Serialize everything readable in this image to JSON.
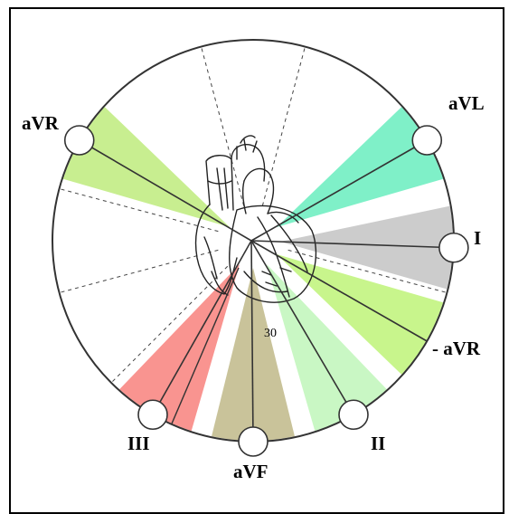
{
  "diagram": {
    "leads": [
      {
        "key": "aVR",
        "label": "aVR",
        "angle_deg": 210,
        "sector_color": "#c8ee90"
      },
      {
        "key": "aVL",
        "label": "aVL",
        "angle_deg": 330,
        "sector_color": "#7ff0c8"
      },
      {
        "key": "I",
        "label": "I",
        "angle_deg": 2,
        "sector_color": "#cccccc"
      },
      {
        "key": "neg-aVR",
        "label": "- aVR",
        "angle_deg": 30,
        "sector_color": "#c8f58c"
      },
      {
        "key": "II",
        "label": "II",
        "angle_deg": 60,
        "sector_color": "#c9f7c4"
      },
      {
        "key": "aVF",
        "label": "aVF",
        "angle_deg": 90,
        "sector_color": "#c9c39a"
      },
      {
        "key": "III",
        "label": "III",
        "angle_deg": 120,
        "sector_color": "#f99490"
      }
    ],
    "angle_marker": {
      "text": "30"
    },
    "colors": {
      "circle_stroke": "#333333",
      "axis_line": "#333333",
      "dashed_line": "#444444",
      "heart_ink": "#222222",
      "electrode_fill": "#ffffff"
    }
  }
}
